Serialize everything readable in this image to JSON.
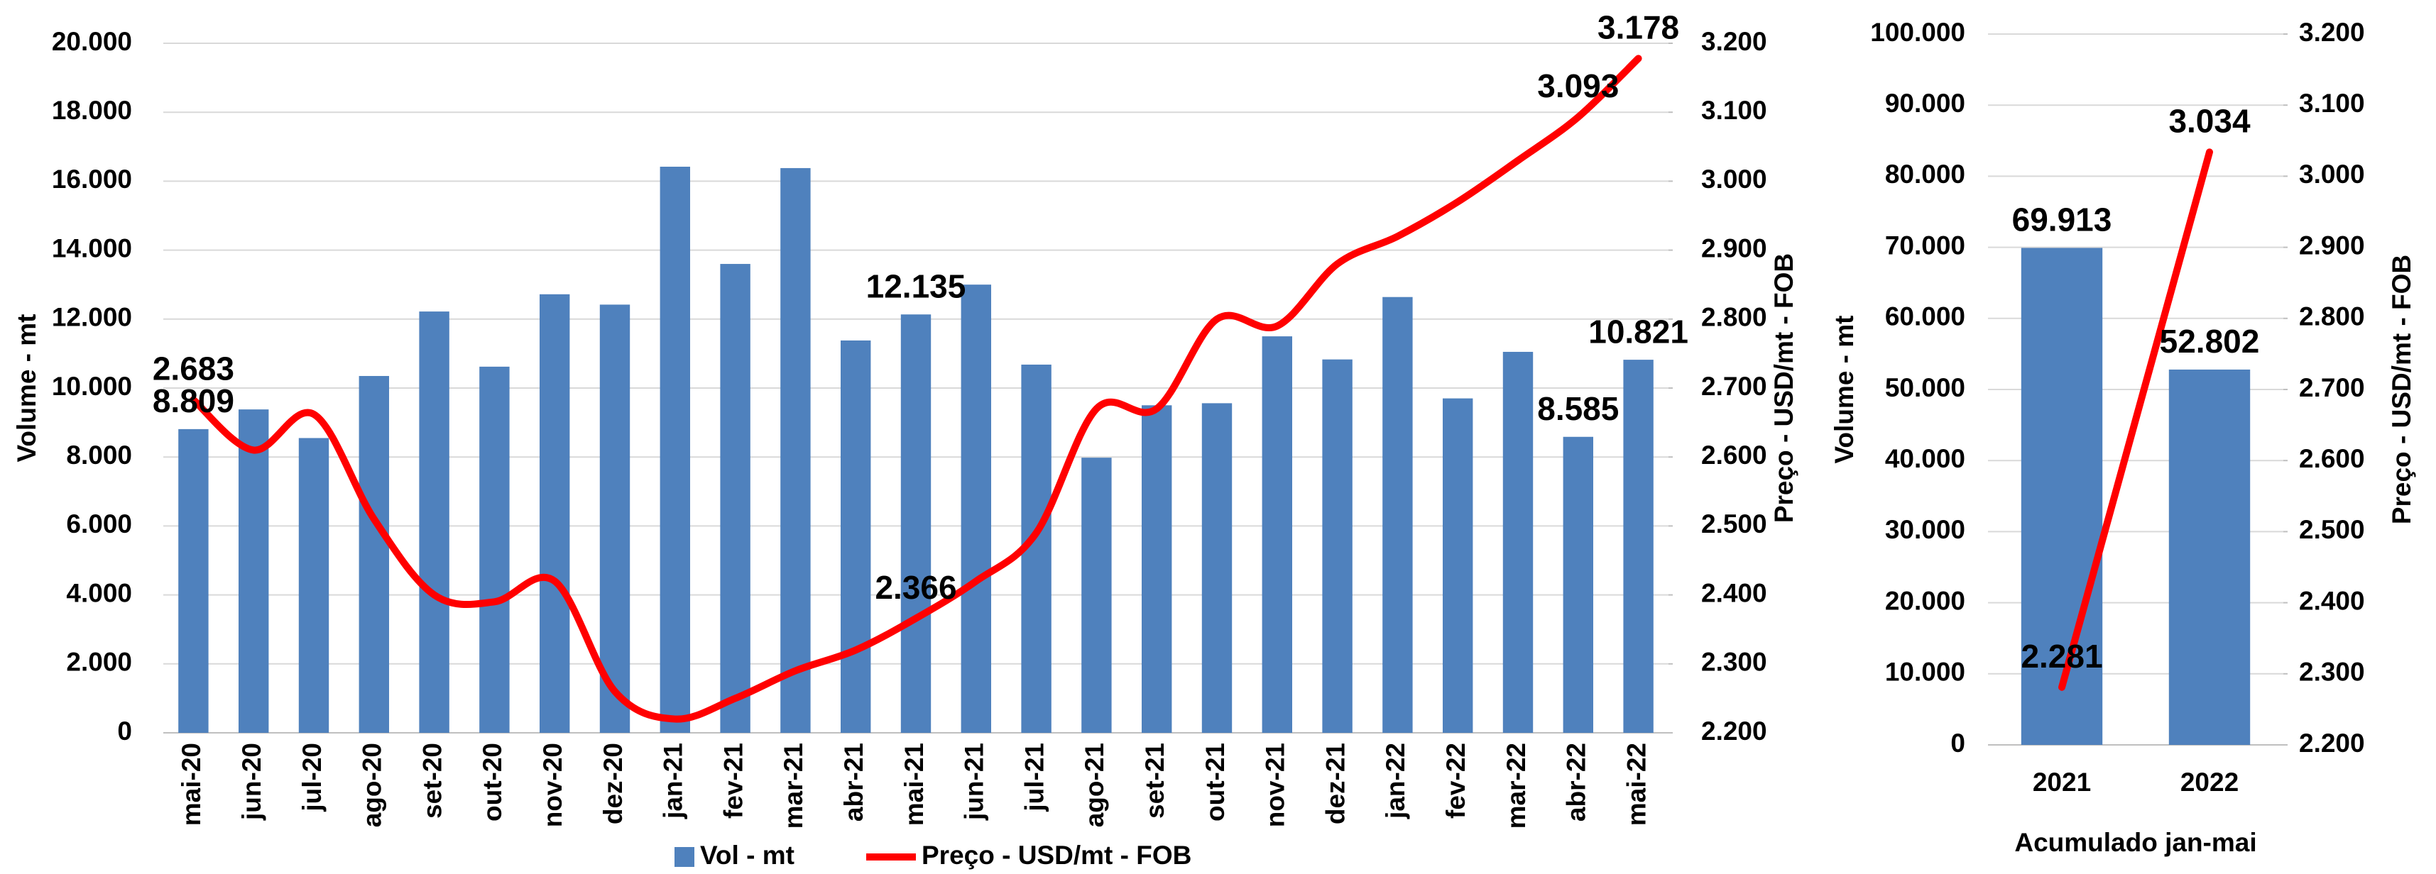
{
  "chart_data": [
    {
      "type": "bar-line",
      "categories": [
        "mai-20",
        "jun-20",
        "jul-20",
        "ago-20",
        "set-20",
        "out-20",
        "nov-20",
        "dez-20",
        "jan-21",
        "fev-21",
        "mar-21",
        "abr-21",
        "mai-21",
        "jun-21",
        "jul-21",
        "ago-21",
        "set-21",
        "out-21",
        "nov-21",
        "dez-21",
        "jan-22",
        "fev-22",
        "mar-22",
        "abr-22",
        "mai-22"
      ],
      "series": [
        {
          "name": "Vol - mt",
          "color": "#4f81bd",
          "type": "bar",
          "values": [
            8809,
            9380,
            8550,
            10350,
            12220,
            10620,
            12720,
            12420,
            16420,
            13600,
            16380,
            11380,
            12135,
            13000,
            10680,
            7980,
            9500,
            9560,
            11500,
            10830,
            12640,
            9700,
            11050,
            8585,
            10821
          ],
          "value_labels": [
            "8.809",
            null,
            null,
            null,
            null,
            null,
            null,
            null,
            null,
            null,
            null,
            null,
            "12.135",
            null,
            null,
            null,
            null,
            null,
            null,
            null,
            null,
            null,
            null,
            "8.585",
            "10.821"
          ]
        },
        {
          "name": "Preço - USD/mt - FOB",
          "color": "#ff0000",
          "type": "line",
          "axis": "y2",
          "values": [
            2683,
            2610,
            2662,
            2510,
            2400,
            2390,
            2420,
            2260,
            2220,
            2250,
            2290,
            2320,
            2366,
            2420,
            2490,
            2670,
            2670,
            2800,
            2790,
            2880,
            2920,
            2970,
            3030,
            3093,
            3178
          ],
          "value_labels": [
            "2.683",
            null,
            null,
            null,
            null,
            null,
            null,
            null,
            null,
            null,
            null,
            null,
            "2.366",
            null,
            null,
            null,
            null,
            null,
            null,
            null,
            null,
            null,
            null,
            "3.093",
            "3.178"
          ]
        }
      ],
      "y_label": "Volume - mt",
      "y2_label": "Preço - USD/mt - FOB",
      "ylim": [
        0,
        20000
      ],
      "yticks": [
        0,
        {
          "value": 2000,
          "label": "2.000"
        },
        {
          "value": 4000,
          "label": "4.000"
        },
        {
          "value": 6000,
          "label": "6.000"
        },
        {
          "value": 8000,
          "label": "8.000"
        },
        {
          "value": 10000,
          "label": "10.000"
        },
        {
          "value": 12000,
          "label": "12.000"
        },
        {
          "value": 14000,
          "label": "14.000"
        },
        {
          "value": 16000,
          "label": "16.000"
        },
        {
          "value": 18000,
          "label": "18.000"
        },
        {
          "value": 20000,
          "label": "20.000"
        }
      ],
      "y2lim": [
        2200,
        3200
      ],
      "y2ticks": [
        {
          "value": 2200,
          "label": "2.200"
        },
        {
          "value": 2300,
          "label": "2.300"
        },
        {
          "value": 2400,
          "label": "2.400"
        },
        {
          "value": 2500,
          "label": "2.500"
        },
        {
          "value": 2600,
          "label": "2.600"
        },
        {
          "value": 2700,
          "label": "2.700"
        },
        {
          "value": 2800,
          "label": "2.800"
        },
        {
          "value": 2900,
          "label": "2.900"
        },
        {
          "value": 3000,
          "label": "3.000"
        },
        {
          "value": 3100,
          "label": "3.100"
        },
        {
          "value": 3200,
          "label": "3.200"
        }
      ],
      "grid": true,
      "legend": "bottom"
    },
    {
      "type": "bar-line",
      "categories": [
        "2021",
        "2022"
      ],
      "series": [
        {
          "color": "#4f81bd",
          "type": "bar",
          "values": [
            69913,
            52802
          ],
          "value_labels": [
            "69.913",
            "52.802"
          ]
        },
        {
          "color": "#ff0000",
          "type": "line",
          "axis": "y2",
          "values": [
            2281,
            3034
          ],
          "value_labels": [
            "2.281",
            "3.034"
          ]
        }
      ],
      "x_label": "Acumulado jan-mai",
      "y_label": "Volume - mt",
      "y2_label": "Preço - USD/mt - FOB",
      "ylim": [
        0,
        100000
      ],
      "yticks": [
        0,
        {
          "value": 10000,
          "label": "10.000"
        },
        {
          "value": 20000,
          "label": "20.000"
        },
        {
          "value": 30000,
          "label": "30.000"
        },
        {
          "value": 40000,
          "label": "40.000"
        },
        {
          "value": 50000,
          "label": "50.000"
        },
        {
          "value": 60000,
          "label": "60.000"
        },
        {
          "value": 70000,
          "label": "70.000"
        },
        {
          "value": 80000,
          "label": "80.000"
        },
        {
          "value": 90000,
          "label": "90.000"
        },
        {
          "value": 100000,
          "label": "100.000"
        }
      ],
      "y2lim": [
        2200,
        3200
      ],
      "y2ticks": [
        {
          "value": 2200,
          "label": "2.200"
        },
        {
          "value": 2300,
          "label": "2.300"
        },
        {
          "value": 2400,
          "label": "2.400"
        },
        {
          "value": 2500,
          "label": "2.500"
        },
        {
          "value": 2600,
          "label": "2.600"
        },
        {
          "value": 2700,
          "label": "2.700"
        },
        {
          "value": 2800,
          "label": "2.800"
        },
        {
          "value": 2900,
          "label": "2.900"
        },
        {
          "value": 3000,
          "label": "3.000"
        },
        {
          "value": 3100,
          "label": "3.100"
        },
        {
          "value": 3200,
          "label": "3.200"
        }
      ],
      "grid": true
    }
  ]
}
